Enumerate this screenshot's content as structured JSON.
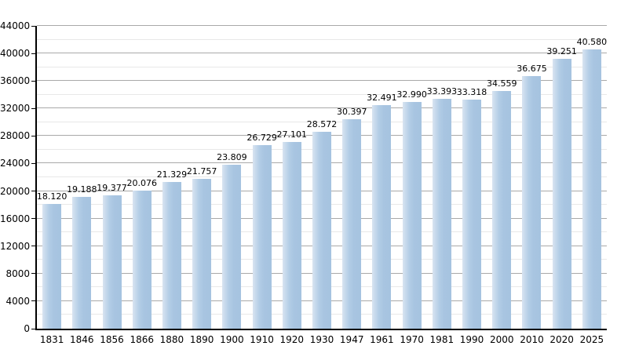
{
  "chart_data": {
    "type": "bar",
    "title": "",
    "xlabel": "",
    "ylabel": "",
    "categories": [
      "1831",
      "1846",
      "1856",
      "1866",
      "1880",
      "1890",
      "1900",
      "1910",
      "1920",
      "1930",
      "1947",
      "1961",
      "1970",
      "1981",
      "1990",
      "2000",
      "2010",
      "2020",
      "2025"
    ],
    "values": [
      18120,
      19188,
      19377,
      20076,
      21329,
      21757,
      23809,
      26729,
      27101,
      28572,
      30397,
      32491,
      32990,
      33393,
      33318,
      34559,
      36675,
      39251,
      40580
    ],
    "value_labels": [
      "18.120",
      "19.188",
      "19.377",
      "20.076",
      "21.329",
      "21.757",
      "23.809",
      "26.729",
      "27.101",
      "28.572",
      "30.397",
      "32.491",
      "32.990",
      "33.393",
      "33.318",
      "34.559",
      "36.675",
      "39.251",
      "40.580"
    ],
    "ylim": [
      0,
      44000
    ],
    "y_major_step": 4000,
    "y_minor_step": 2000,
    "grid": true,
    "legend": false,
    "bar_color": "#a6c3e0",
    "bar_edge_light_color": "#d8e4f1",
    "major_grid_color": "#a9a9a9",
    "minor_grid_color": "#e8e8e8",
    "axis_color": "#000000",
    "text_color": "#000000"
  }
}
